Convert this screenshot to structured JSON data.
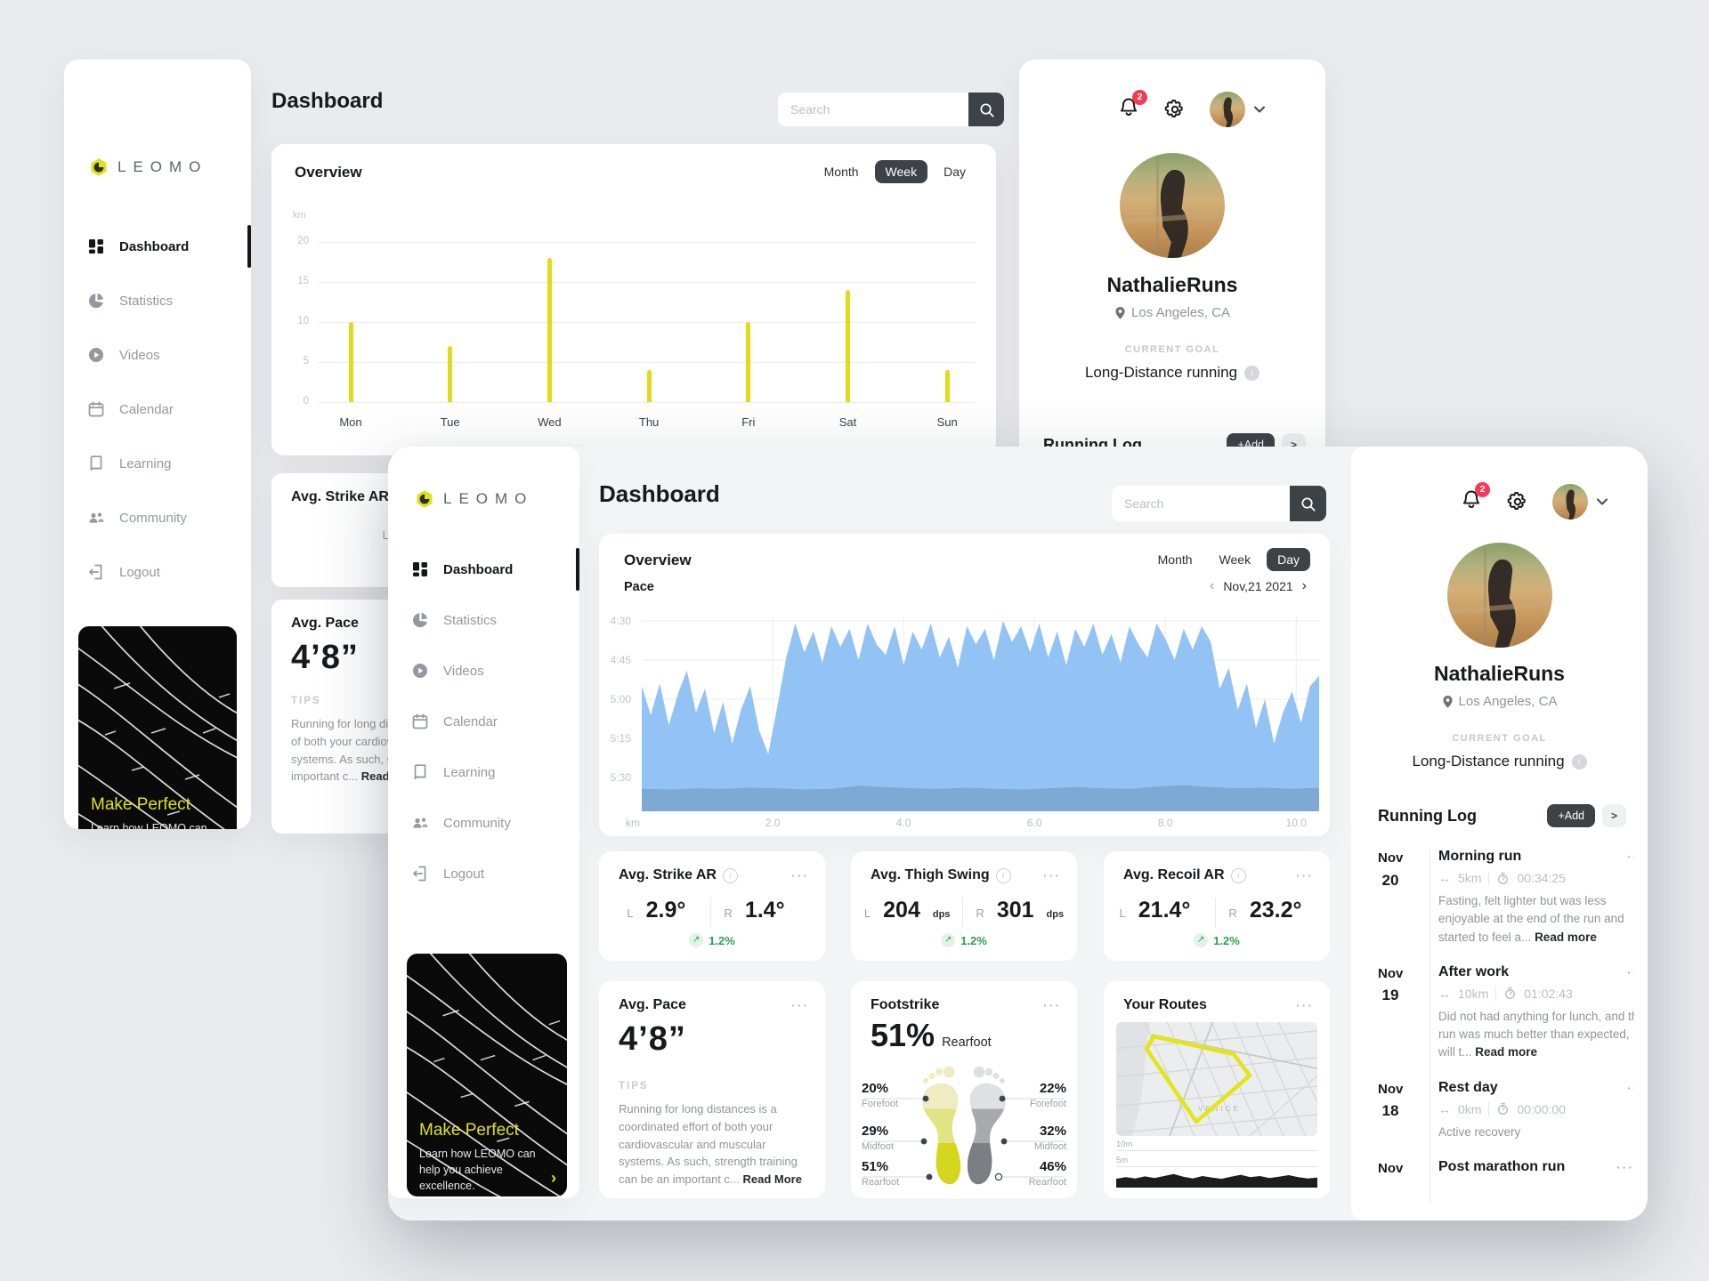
{
  "brand": {
    "name": "LEOMO",
    "accent": "#dfe11b"
  },
  "header": {
    "title": "Dashboard",
    "search_placeholder": "Search"
  },
  "sidebar": {
    "items": [
      {
        "label": "Dashboard",
        "icon": "dashboard-icon",
        "active": true
      },
      {
        "label": "Statistics",
        "icon": "statistics-icon",
        "active": false
      },
      {
        "label": "Videos",
        "icon": "videos-icon",
        "active": false
      },
      {
        "label": "Calendar",
        "icon": "calendar-icon",
        "active": false
      },
      {
        "label": "Learning",
        "icon": "learning-icon",
        "active": false
      },
      {
        "label": "Community",
        "icon": "community-icon",
        "active": false
      },
      {
        "label": "Logout",
        "icon": "logout-icon",
        "active": false
      }
    ],
    "promo": {
      "title": "Make Perfect",
      "text": "Learn how LEOMO can help you achieve excellence.",
      "arrow": "›"
    }
  },
  "profile": {
    "username": "NathalieRuns",
    "location": "Los Angeles, CA",
    "goal_label": "CURRENT GOAL",
    "goal": "Long-Distance running",
    "notification_count": "2"
  },
  "running_log": {
    "title": "Running Log",
    "add_label": "+Add",
    "more_label": ">",
    "entries": [
      {
        "month": "Nov",
        "day": "20",
        "title": "Morning run",
        "distance": "5km",
        "time": "00:34:25",
        "note": "Fasting, felt lighter but was less enjoyable at the end of the run and started to feel a... ",
        "read_more": "Read more"
      },
      {
        "month": "Nov",
        "day": "19",
        "title": "After work",
        "distance": "10km",
        "time": "01:02:43",
        "note": "Did not had anything for lunch, and the run was much better than expected, will t... ",
        "read_more": "Read more"
      },
      {
        "month": "Nov",
        "day": "18",
        "title": "Rest day",
        "distance": "0km",
        "time": "00:00:00",
        "note": "Active recovery",
        "read_more": ""
      },
      {
        "month": "Nov",
        "day": "",
        "title": "Post marathon run",
        "distance": "",
        "time": "",
        "note": "",
        "read_more": ""
      }
    ]
  },
  "back_overview": {
    "title": "Overview",
    "period_options": [
      "Month",
      "Week",
      "Day"
    ],
    "active_period": "Week",
    "unit_label": "km"
  },
  "front_overview": {
    "title": "Overview",
    "period_options": [
      "Month",
      "Week",
      "Day"
    ],
    "active_period": "Day",
    "metric_label": "Pace",
    "date_label": "Nov,21 2021",
    "prev": "‹",
    "next": "›",
    "unit_label": "km"
  },
  "metric_cards": [
    {
      "title": "Avg. Strike AR",
      "left_label": "L",
      "left_value": "2.9°",
      "left_unit": "",
      "right_label": "R",
      "right_value": "1.4°",
      "right_unit": "",
      "change": "1.2%",
      "change_dir": "↗"
    },
    {
      "title": "Avg. Thigh Swing",
      "left_label": "L",
      "left_value": "204",
      "left_unit": "dps",
      "right_label": "R",
      "right_value": "301",
      "right_unit": "dps",
      "change": "1.2%",
      "change_dir": "↗"
    },
    {
      "title": "Avg. Recoil AR",
      "left_label": "L",
      "left_value": "21.4°",
      "left_unit": "",
      "right_label": "R",
      "right_value": "23.2°",
      "right_unit": "",
      "change": "1.2%",
      "change_dir": "↗"
    }
  ],
  "avg_pace_card": {
    "title": "Avg. Pace",
    "value": "4’8”",
    "tips_label": "TIPS",
    "tips_text": "Running for long distances is a coordinated effort of both your cardiovascular and muscular systems. As such, strength training can be an important c... ",
    "read_more": "Read More"
  },
  "footstrike_card": {
    "title": "Footstrike",
    "headline_value": "51%",
    "headline_label": "Rearfoot",
    "left_foot": [
      {
        "value": "20%",
        "label": "Forefoot"
      },
      {
        "value": "29%",
        "label": "Midfoot"
      },
      {
        "value": "51%",
        "label": "Rearfoot"
      }
    ],
    "right_foot": [
      {
        "value": "22%",
        "label": "Forefoot"
      },
      {
        "value": "32%",
        "label": "Midfoot"
      },
      {
        "value": "46%",
        "label": "Rearfoot"
      }
    ]
  },
  "routes_card": {
    "title": "Your Routes",
    "map_label": "VENICE",
    "elev_lines": [
      "10m",
      "5m"
    ]
  },
  "chart_data": [
    {
      "type": "bar",
      "title": "Overview weekly distance",
      "categories": [
        "Mon",
        "Tue",
        "Wed",
        "Thu",
        "Fri",
        "Sat",
        "Sun"
      ],
      "values": [
        10,
        7,
        18,
        4,
        10,
        14,
        4
      ],
      "ylabel": "km",
      "yticks": [
        0,
        5,
        10,
        15,
        20
      ],
      "ylim": [
        0,
        20
      ],
      "bar_color": "#e1dc17",
      "grid": true
    },
    {
      "type": "area",
      "title": "Pace over distance (Day view, Nov 21 2021)",
      "xlabel": "km",
      "x_tick_labels": [
        "2.0",
        "4.0",
        "6.0",
        "8.0",
        "10.0"
      ],
      "x_ticks": [
        2,
        4,
        6,
        8,
        10
      ],
      "x_range": [
        0,
        10.35
      ],
      "y_tick_labels": [
        "4:30",
        "4:45",
        "5:00",
        "5:15",
        "5:30"
      ],
      "y_range_seconds": [
        270,
        330
      ],
      "fill_color": "#93c3f4",
      "elevation_color": "#6f94bb",
      "pace_seconds": [
        295,
        306,
        294,
        310,
        298,
        289,
        305,
        296,
        313,
        301,
        317,
        304,
        295,
        312,
        321,
        303,
        284,
        271,
        282,
        274,
        286,
        272,
        280,
        273,
        285,
        271,
        279,
        283,
        272,
        287,
        274,
        281,
        271,
        284,
        276,
        288,
        272,
        279,
        273,
        285,
        270,
        278,
        272,
        282,
        271,
        284,
        274,
        287,
        273,
        280,
        271,
        283,
        275,
        286,
        272,
        279,
        284,
        271,
        277,
        285,
        273,
        281,
        272,
        278,
        296,
        288,
        304,
        294,
        311,
        300,
        317,
        305,
        297,
        309,
        295,
        291
      ],
      "elevation_m": [
        3.6,
        3.5,
        3.7,
        3.6,
        3.8,
        3.7,
        3.5,
        3.6,
        4.1,
        3.9,
        3.7,
        3.6,
        3.8,
        3.6,
        3.5,
        3.7,
        3.9,
        3.7,
        3.6,
        4.0,
        4.2,
        3.9,
        3.7,
        3.8,
        3.6,
        3.8
      ]
    },
    {
      "type": "area",
      "title": "Route elevation profile",
      "y_lines": [
        "10m",
        "5m"
      ],
      "ylim_m": [
        0,
        12
      ],
      "values_m": [
        2.2,
        2.6,
        2.3,
        2.8,
        2.4,
        2.9,
        3.4,
        2.7,
        2.3,
        2.9,
        2.5,
        2.2,
        2.7,
        3.2,
        2.6,
        2.9,
        2.4,
        2.7,
        3.1,
        2.6,
        2.3,
        2.5
      ],
      "fill_color": "#1b1d1f"
    }
  ]
}
